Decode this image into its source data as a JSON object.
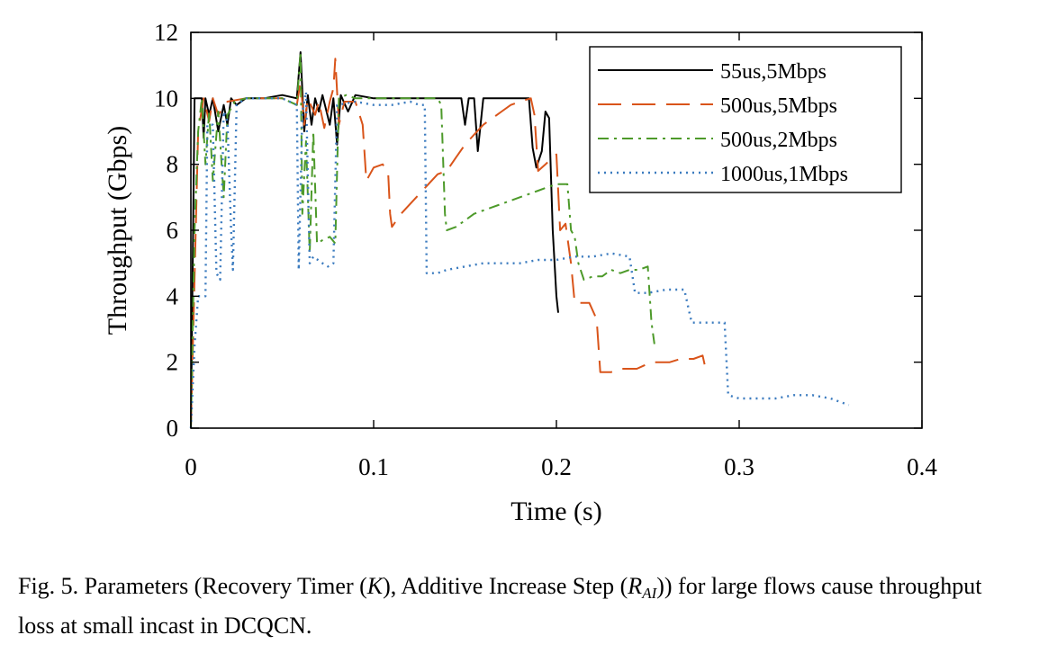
{
  "chart_data": {
    "type": "line",
    "xlabel": "Time (s)",
    "ylabel": "Throughput (Gbps)",
    "xlim": [
      0,
      0.4
    ],
    "ylim": [
      0,
      12
    ],
    "x_ticks": [
      "0",
      "0.1",
      "0.2",
      "0.3",
      "0.4"
    ],
    "y_ticks": [
      "0",
      "2",
      "4",
      "6",
      "8",
      "10",
      "12"
    ],
    "grid": false,
    "legend_position": "top-right",
    "series": [
      {
        "name": "55us,5Mbps",
        "color": "#000000",
        "dash": "solid",
        "points": [
          [
            0,
            0
          ],
          [
            0.002,
            10
          ],
          [
            0.006,
            10
          ],
          [
            0.007,
            8.8
          ],
          [
            0.008,
            10
          ],
          [
            0.01,
            9.5
          ],
          [
            0.012,
            10
          ],
          [
            0.015,
            9
          ],
          [
            0.018,
            9.8
          ],
          [
            0.02,
            9.2
          ],
          [
            0.022,
            10
          ],
          [
            0.025,
            9.8
          ],
          [
            0.03,
            10
          ],
          [
            0.04,
            10
          ],
          [
            0.05,
            10.1
          ],
          [
            0.058,
            10
          ],
          [
            0.06,
            11.4
          ],
          [
            0.062,
            9
          ],
          [
            0.064,
            10.1
          ],
          [
            0.066,
            9.2
          ],
          [
            0.068,
            10
          ],
          [
            0.07,
            9.6
          ],
          [
            0.072,
            10.1
          ],
          [
            0.076,
            9.2
          ],
          [
            0.078,
            10
          ],
          [
            0.08,
            8.6
          ],
          [
            0.082,
            10.1
          ],
          [
            0.086,
            9.6
          ],
          [
            0.09,
            10.1
          ],
          [
            0.1,
            10
          ],
          [
            0.12,
            10
          ],
          [
            0.14,
            10
          ],
          [
            0.148,
            10
          ],
          [
            0.15,
            9.2
          ],
          [
            0.152,
            10
          ],
          [
            0.155,
            10
          ],
          [
            0.157,
            8.4
          ],
          [
            0.16,
            10
          ],
          [
            0.185,
            10
          ],
          [
            0.187,
            8.5
          ],
          [
            0.189,
            7.9
          ],
          [
            0.192,
            8.4
          ],
          [
            0.194,
            9.6
          ],
          [
            0.196,
            9.4
          ],
          [
            0.198,
            6
          ],
          [
            0.2,
            4
          ],
          [
            0.201,
            3.5
          ]
        ]
      },
      {
        "name": "500us,5Mbps",
        "color": "#d9541a",
        "dash": "long-dash",
        "points": [
          [
            0,
            0
          ],
          [
            0.004,
            9
          ],
          [
            0.007,
            10
          ],
          [
            0.01,
            9.3
          ],
          [
            0.012,
            10
          ],
          [
            0.015,
            9.5
          ],
          [
            0.02,
            9.9
          ],
          [
            0.03,
            10
          ],
          [
            0.04,
            10
          ],
          [
            0.05,
            10
          ],
          [
            0.058,
            9.8
          ],
          [
            0.06,
            10.5
          ],
          [
            0.062,
            9.2
          ],
          [
            0.064,
            10
          ],
          [
            0.068,
            9.5
          ],
          [
            0.07,
            9.9
          ],
          [
            0.073,
            9.1
          ],
          [
            0.076,
            9.9
          ],
          [
            0.078,
            10.3
          ],
          [
            0.079,
            11.2
          ],
          [
            0.081,
            9.2
          ],
          [
            0.084,
            9.9
          ],
          [
            0.09,
            9.9
          ],
          [
            0.094,
            9.2
          ],
          [
            0.096,
            7.5
          ],
          [
            0.1,
            7.9
          ],
          [
            0.105,
            8.0
          ],
          [
            0.108,
            7.7
          ],
          [
            0.109,
            6.5
          ],
          [
            0.11,
            6.1
          ],
          [
            0.115,
            6.5
          ],
          [
            0.12,
            6.8
          ],
          [
            0.125,
            7.1
          ],
          [
            0.13,
            7.4
          ],
          [
            0.135,
            7.7
          ],
          [
            0.14,
            7.8
          ],
          [
            0.145,
            8.2
          ],
          [
            0.15,
            8.6
          ],
          [
            0.155,
            8.9
          ],
          [
            0.16,
            9.2
          ],
          [
            0.165,
            9.4
          ],
          [
            0.17,
            9.6
          ],
          [
            0.175,
            9.8
          ],
          [
            0.18,
            9.9
          ],
          [
            0.186,
            10
          ],
          [
            0.188,
            9.5
          ],
          [
            0.19,
            7.8
          ],
          [
            0.194,
            8.0
          ],
          [
            0.198,
            8.2
          ],
          [
            0.2,
            8.3
          ],
          [
            0.202,
            6.0
          ],
          [
            0.205,
            6.2
          ],
          [
            0.208,
            5.0
          ],
          [
            0.21,
            3.8
          ],
          [
            0.215,
            3.8
          ],
          [
            0.218,
            3.8
          ],
          [
            0.222,
            3.3
          ],
          [
            0.224,
            1.7
          ],
          [
            0.23,
            1.7
          ],
          [
            0.235,
            1.8
          ],
          [
            0.24,
            1.8
          ],
          [
            0.244,
            1.8
          ],
          [
            0.248,
            1.9
          ],
          [
            0.252,
            2.0
          ],
          [
            0.256,
            2.0
          ],
          [
            0.262,
            2.0
          ],
          [
            0.268,
            2.1
          ],
          [
            0.275,
            2.1
          ],
          [
            0.28,
            2.2
          ],
          [
            0.282,
            1.7
          ]
        ]
      },
      {
        "name": "500us,2Mbps",
        "color": "#4d9a2a",
        "dash": "dash-dot",
        "points": [
          [
            0,
            0
          ],
          [
            0.002,
            6
          ],
          [
            0.004,
            9
          ],
          [
            0.006,
            10
          ],
          [
            0.008,
            8
          ],
          [
            0.01,
            9.6
          ],
          [
            0.012,
            7.5
          ],
          [
            0.015,
            9.6
          ],
          [
            0.018,
            7
          ],
          [
            0.02,
            9.5
          ],
          [
            0.024,
            9.9
          ],
          [
            0.03,
            10
          ],
          [
            0.04,
            10
          ],
          [
            0.05,
            10
          ],
          [
            0.058,
            9.8
          ],
          [
            0.06,
            11.4
          ],
          [
            0.061,
            6.5
          ],
          [
            0.063,
            8.7
          ],
          [
            0.065,
            5.3
          ],
          [
            0.067,
            9
          ],
          [
            0.069,
            5.6
          ],
          [
            0.072,
            5.7
          ],
          [
            0.076,
            5.8
          ],
          [
            0.079,
            5.6
          ],
          [
            0.081,
            10
          ],
          [
            0.085,
            10.1
          ],
          [
            0.09,
            10
          ],
          [
            0.1,
            10
          ],
          [
            0.11,
            10
          ],
          [
            0.12,
            10
          ],
          [
            0.135,
            10
          ],
          [
            0.137,
            9.8
          ],
          [
            0.139,
            6.5
          ],
          [
            0.14,
            6.0
          ],
          [
            0.145,
            6.1
          ],
          [
            0.15,
            6.3
          ],
          [
            0.155,
            6.5
          ],
          [
            0.16,
            6.6
          ],
          [
            0.165,
            6.7
          ],
          [
            0.17,
            6.8
          ],
          [
            0.175,
            6.9
          ],
          [
            0.18,
            7.0
          ],
          [
            0.185,
            7.1
          ],
          [
            0.19,
            7.2
          ],
          [
            0.195,
            7.3
          ],
          [
            0.2,
            7.4
          ],
          [
            0.204,
            7.4
          ],
          [
            0.206,
            7.4
          ],
          [
            0.208,
            6.0
          ],
          [
            0.21,
            5.8
          ],
          [
            0.212,
            5.0
          ],
          [
            0.215,
            4.5
          ],
          [
            0.22,
            4.6
          ],
          [
            0.225,
            4.6
          ],
          [
            0.23,
            4.8
          ],
          [
            0.235,
            4.7
          ],
          [
            0.24,
            4.8
          ],
          [
            0.245,
            4.8
          ],
          [
            0.25,
            4.9
          ],
          [
            0.252,
            3.2
          ],
          [
            0.254,
            2.4
          ]
        ]
      },
      {
        "name": "1000us,1Mbps",
        "color": "#3b7bbf",
        "dash": "dotted",
        "points": [
          [
            0,
            0
          ],
          [
            0.002,
            2.5
          ],
          [
            0.004,
            4
          ],
          [
            0.008,
            4
          ],
          [
            0.009,
            9.2
          ],
          [
            0.012,
            9.2
          ],
          [
            0.014,
            4.7
          ],
          [
            0.016,
            4.5
          ],
          [
            0.018,
            9.6
          ],
          [
            0.02,
            9.3
          ],
          [
            0.022,
            6.0
          ],
          [
            0.023,
            4.8
          ],
          [
            0.025,
            9.8
          ],
          [
            0.03,
            10
          ],
          [
            0.04,
            10
          ],
          [
            0.05,
            10
          ],
          [
            0.058,
            9.8
          ],
          [
            0.059,
            4.8
          ],
          [
            0.061,
            9.6
          ],
          [
            0.063,
            10.2
          ],
          [
            0.065,
            5.0
          ],
          [
            0.067,
            5.2
          ],
          [
            0.072,
            5.0
          ],
          [
            0.075,
            4.9
          ],
          [
            0.078,
            5.0
          ],
          [
            0.08,
            9.8
          ],
          [
            0.09,
            9.9
          ],
          [
            0.1,
            9.8
          ],
          [
            0.11,
            9.8
          ],
          [
            0.12,
            9.9
          ],
          [
            0.125,
            9.8
          ],
          [
            0.128,
            9.8
          ],
          [
            0.129,
            4.7
          ],
          [
            0.135,
            4.7
          ],
          [
            0.14,
            4.8
          ],
          [
            0.15,
            4.9
          ],
          [
            0.16,
            5.0
          ],
          [
            0.17,
            5.0
          ],
          [
            0.18,
            5.0
          ],
          [
            0.19,
            5.1
          ],
          [
            0.2,
            5.1
          ],
          [
            0.21,
            5.2
          ],
          [
            0.22,
            5.2
          ],
          [
            0.23,
            5.3
          ],
          [
            0.24,
            5.2
          ],
          [
            0.243,
            4.1
          ],
          [
            0.25,
            4.1
          ],
          [
            0.26,
            4.2
          ],
          [
            0.27,
            4.2
          ],
          [
            0.274,
            3.2
          ],
          [
            0.28,
            3.2
          ],
          [
            0.285,
            3.2
          ],
          [
            0.292,
            3.2
          ],
          [
            0.294,
            1.0
          ],
          [
            0.3,
            0.9
          ],
          [
            0.31,
            0.9
          ],
          [
            0.32,
            0.9
          ],
          [
            0.33,
            1.0
          ],
          [
            0.34,
            1.0
          ],
          [
            0.35,
            0.9
          ],
          [
            0.36,
            0.7
          ]
        ]
      }
    ]
  },
  "caption": {
    "lead": "Fig. 5.  Parameters (Recovery Timer (",
    "var_k": "K",
    "mid": "), Additive Increase Step (",
    "var_r": "R",
    "var_r_sub": "AI",
    "tail": ")) for large flows cause throughput loss at small incast in DCQCN."
  }
}
